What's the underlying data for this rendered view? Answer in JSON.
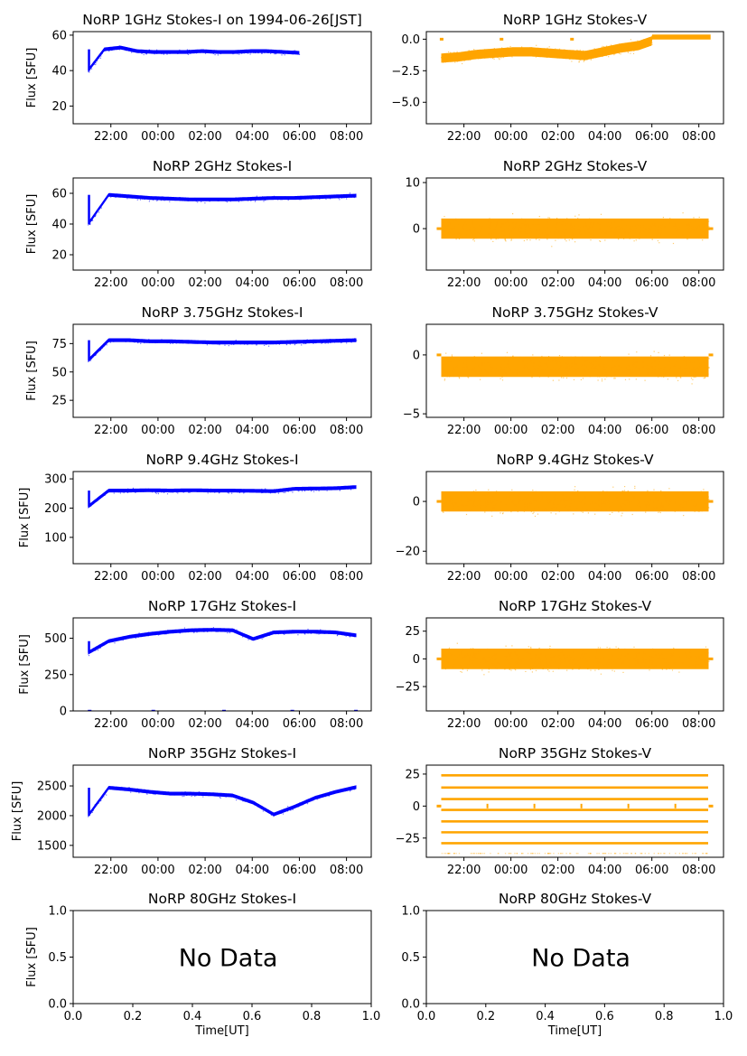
{
  "figure": {
    "colors": {
      "stokes_i": "#0000ff",
      "stokes_v": "#ffa500",
      "frame": "#000000"
    }
  },
  "chart_data": [
    {
      "type": "scatter",
      "title": "NoRP 1GHz Stokes-I on 1994-06-26[JST]",
      "ylabel": "Flux [SFU]",
      "xlabel": "",
      "x_ticks": [
        "22:00",
        "00:00",
        "02:00",
        "04:00",
        "06:00",
        "08:00"
      ],
      "xlim_hours": [
        20.4,
        33.05
      ],
      "ylim": [
        10,
        62
      ],
      "y_ticks": [
        20,
        40,
        60
      ],
      "series": [
        {
          "color": "#0000ff",
          "x_start": "21:02",
          "x_end": "06:00",
          "values": [
            40,
            52,
            53,
            51,
            50.5,
            50.5,
            50.5,
            51,
            50.5,
            50.5,
            51,
            51,
            50.5,
            50
          ]
        }
      ]
    },
    {
      "type": "scatter",
      "title": "NoRP 1GHz Stokes-V",
      "xlabel": "",
      "x_ticks": [
        "22:00",
        "00:00",
        "02:00",
        "04:00",
        "06:00",
        "08:00"
      ],
      "xlim_hours": [
        20.4,
        33.05
      ],
      "ylim": [
        -6.7,
        0.6
      ],
      "y_ticks": [
        "0.0",
        "−2.5",
        "−5.0"
      ],
      "y_tick_values": [
        0,
        -2.5,
        -5
      ],
      "series": [
        {
          "color": "#ffa500",
          "x_start": "21:02",
          "x_end": "08:30",
          "values": [
            -1.5,
            -1.4,
            -1.2,
            -1.1,
            -1.0,
            -1.0,
            -1.1,
            -1.2,
            -1.3,
            -1.0,
            -0.7,
            -0.5,
            0,
            0,
            0,
            0
          ]
        }
      ]
    },
    {
      "type": "scatter",
      "title": "NoRP 2GHz Stokes-I",
      "ylabel": "Flux [SFU]",
      "xlabel": "",
      "x_ticks": [
        "22:00",
        "00:00",
        "02:00",
        "04:00",
        "06:00",
        "08:00"
      ],
      "xlim_hours": [
        20.4,
        33.05
      ],
      "ylim": [
        10,
        70
      ],
      "y_ticks": [
        20,
        40,
        60
      ],
      "series": [
        {
          "color": "#0000ff",
          "x_start": "21:02",
          "x_end": "08:25",
          "values": [
            40,
            59,
            58,
            57,
            56.5,
            56,
            56,
            56,
            56.5,
            57,
            57,
            57.5,
            58,
            58.5
          ]
        }
      ]
    },
    {
      "type": "scatter",
      "title": "NoRP 2GHz Stokes-V",
      "xlabel": "",
      "x_ticks": [
        "22:00",
        "00:00",
        "02:00",
        "04:00",
        "06:00",
        "08:00"
      ],
      "xlim_hours": [
        20.4,
        33.05
      ],
      "ylim": [
        -9,
        11
      ],
      "y_ticks": [
        0,
        10
      ],
      "series": [
        {
          "color": "#ffa500",
          "x_start": "21:02",
          "x_end": "08:25",
          "values": [
            0,
            0,
            0,
            0,
            0,
            0,
            0,
            0,
            0,
            0,
            0,
            0,
            0,
            0
          ]
        }
      ]
    },
    {
      "type": "scatter",
      "title": "NoRP 3.75GHz Stokes-I",
      "ylabel": "Flux [SFU]",
      "xlabel": "",
      "x_ticks": [
        "22:00",
        "00:00",
        "02:00",
        "04:00",
        "06:00",
        "08:00"
      ],
      "xlim_hours": [
        20.4,
        33.05
      ],
      "ylim": [
        10,
        92
      ],
      "y_ticks": [
        25,
        50,
        75
      ],
      "series": [
        {
          "color": "#0000ff",
          "x_start": "21:02",
          "x_end": "08:25",
          "values": [
            60,
            78,
            78,
            77,
            77,
            76.5,
            76,
            76,
            76,
            76,
            76.5,
            77,
            77.5,
            78
          ]
        }
      ]
    },
    {
      "type": "scatter",
      "title": "NoRP 3.75GHz Stokes-V",
      "xlabel": "",
      "x_ticks": [
        "22:00",
        "00:00",
        "02:00",
        "04:00",
        "06:00",
        "08:00"
      ],
      "xlim_hours": [
        20.4,
        33.05
      ],
      "ylim": [
        -5.3,
        2.6
      ],
      "y_ticks": [
        -5,
        0
      ],
      "y_tick_labels": [
        "−5",
        "0"
      ],
      "series": [
        {
          "color": "#ffa500",
          "x_start": "21:02",
          "x_end": "08:25",
          "values": [
            -1,
            -1,
            -1,
            -1,
            -1,
            -1,
            -1,
            -1,
            -1,
            -1,
            -1,
            -1,
            -1,
            -1
          ]
        }
      ]
    },
    {
      "type": "scatter",
      "title": "NoRP 9.4GHz Stokes-I",
      "ylabel": "Flux [SFU]",
      "xlabel": "",
      "x_ticks": [
        "22:00",
        "00:00",
        "02:00",
        "04:00",
        "06:00",
        "08:00"
      ],
      "xlim_hours": [
        20.4,
        33.05
      ],
      "ylim": [
        10,
        325
      ],
      "y_ticks": [
        100,
        200,
        300
      ],
      "series": [
        {
          "color": "#0000ff",
          "x_start": "21:02",
          "x_end": "08:25",
          "values": [
            205,
            260,
            260,
            261,
            260,
            261,
            260,
            260,
            259,
            258,
            266,
            267,
            268,
            272
          ]
        }
      ]
    },
    {
      "type": "scatter",
      "title": "NoRP 9.4GHz Stokes-V",
      "xlabel": "",
      "x_ticks": [
        "22:00",
        "00:00",
        "02:00",
        "04:00",
        "06:00",
        "08:00"
      ],
      "xlim_hours": [
        20.4,
        33.05
      ],
      "ylim": [
        -25,
        12
      ],
      "y_ticks": [
        -20,
        0
      ],
      "y_tick_labels": [
        "−20",
        "0"
      ],
      "series": [
        {
          "color": "#ffa500",
          "x_start": "21:02",
          "x_end": "08:25",
          "values": [
            0,
            0,
            0,
            0,
            0,
            0,
            0,
            0,
            0,
            0,
            0,
            0,
            0,
            0
          ]
        }
      ]
    },
    {
      "type": "scatter",
      "title": "NoRP 17GHz Stokes-I",
      "ylabel": "Flux [SFU]",
      "xlabel": "",
      "x_ticks": [
        "22:00",
        "00:00",
        "02:00",
        "04:00",
        "06:00",
        "08:00"
      ],
      "xlim_hours": [
        20.4,
        33.05
      ],
      "ylim": [
        0,
        640
      ],
      "y_ticks": [
        0,
        250,
        500
      ],
      "series": [
        {
          "color": "#0000ff",
          "x_start": "21:02",
          "x_end": "08:25",
          "values": [
            400,
            480,
            510,
            530,
            545,
            555,
            558,
            555,
            495,
            540,
            545,
            545,
            540,
            520
          ]
        }
      ]
    },
    {
      "type": "scatter",
      "title": "NoRP 17GHz Stokes-V",
      "xlabel": "",
      "x_ticks": [
        "22:00",
        "00:00",
        "02:00",
        "04:00",
        "06:00",
        "08:00"
      ],
      "xlim_hours": [
        20.4,
        33.05
      ],
      "ylim": [
        -47,
        37
      ],
      "y_ticks": [
        -25,
        0,
        25
      ],
      "y_tick_labels": [
        "−25",
        "0",
        "25"
      ],
      "series": [
        {
          "color": "#ffa500",
          "x_start": "21:02",
          "x_end": "08:25",
          "values": [
            0,
            0,
            0,
            0,
            0,
            0,
            0,
            0,
            0,
            0,
            0,
            0,
            0,
            0
          ]
        }
      ]
    },
    {
      "type": "scatter",
      "title": "NoRP 35GHz Stokes-I",
      "ylabel": "Flux [SFU]",
      "xlabel": "",
      "x_ticks": [
        "22:00",
        "00:00",
        "02:00",
        "04:00",
        "06:00",
        "08:00"
      ],
      "xlim_hours": [
        20.4,
        33.05
      ],
      "ylim": [
        1300,
        2850
      ],
      "y_ticks": [
        1500,
        2000,
        2500
      ],
      "series": [
        {
          "color": "#0000ff",
          "x_start": "21:02",
          "x_end": "08:25",
          "values": [
            2000,
            2470,
            2440,
            2400,
            2370,
            2370,
            2360,
            2340,
            2220,
            2020,
            2150,
            2300,
            2400,
            2480
          ]
        }
      ]
    },
    {
      "type": "scatter",
      "title": "NoRP 35GHz Stokes-V",
      "xlabel": "",
      "x_ticks": [
        "22:00",
        "00:00",
        "02:00",
        "04:00",
        "06:00",
        "08:00"
      ],
      "xlim_hours": [
        20.4,
        33.05
      ],
      "ylim": [
        -40,
        32
      ],
      "y_ticks": [
        -25,
        0,
        25
      ],
      "y_tick_labels": [
        "−25",
        "0",
        "25"
      ],
      "series": [
        {
          "color": "#ffa500",
          "x_start": "21:02",
          "x_end": "08:25",
          "levels": [
            24,
            14.5,
            5.5,
            -3,
            -12,
            -20.5,
            -29
          ]
        }
      ]
    },
    {
      "type": "scatter",
      "title": "NoRP 80GHz Stokes-I",
      "ylabel": "Flux [SFU]",
      "xlabel": "Time[UT]",
      "x_ticks": [
        "0.0",
        "0.2",
        "0.4",
        "0.6",
        "0.8",
        "1.0"
      ],
      "y_ticks": [
        "0.0",
        "0.5",
        "1.0"
      ],
      "xlim": [
        0,
        1
      ],
      "ylim": [
        0,
        1
      ],
      "annotation": "No Data",
      "series": []
    },
    {
      "type": "scatter",
      "title": "NoRP 80GHz Stokes-V",
      "xlabel": "Time[UT]",
      "x_ticks": [
        "0.0",
        "0.2",
        "0.4",
        "0.6",
        "0.8",
        "1.0"
      ],
      "y_ticks": [
        "0.0",
        "0.5",
        "1.0"
      ],
      "xlim": [
        0,
        1
      ],
      "ylim": [
        0,
        1
      ],
      "annotation": "No Data",
      "series": []
    }
  ]
}
